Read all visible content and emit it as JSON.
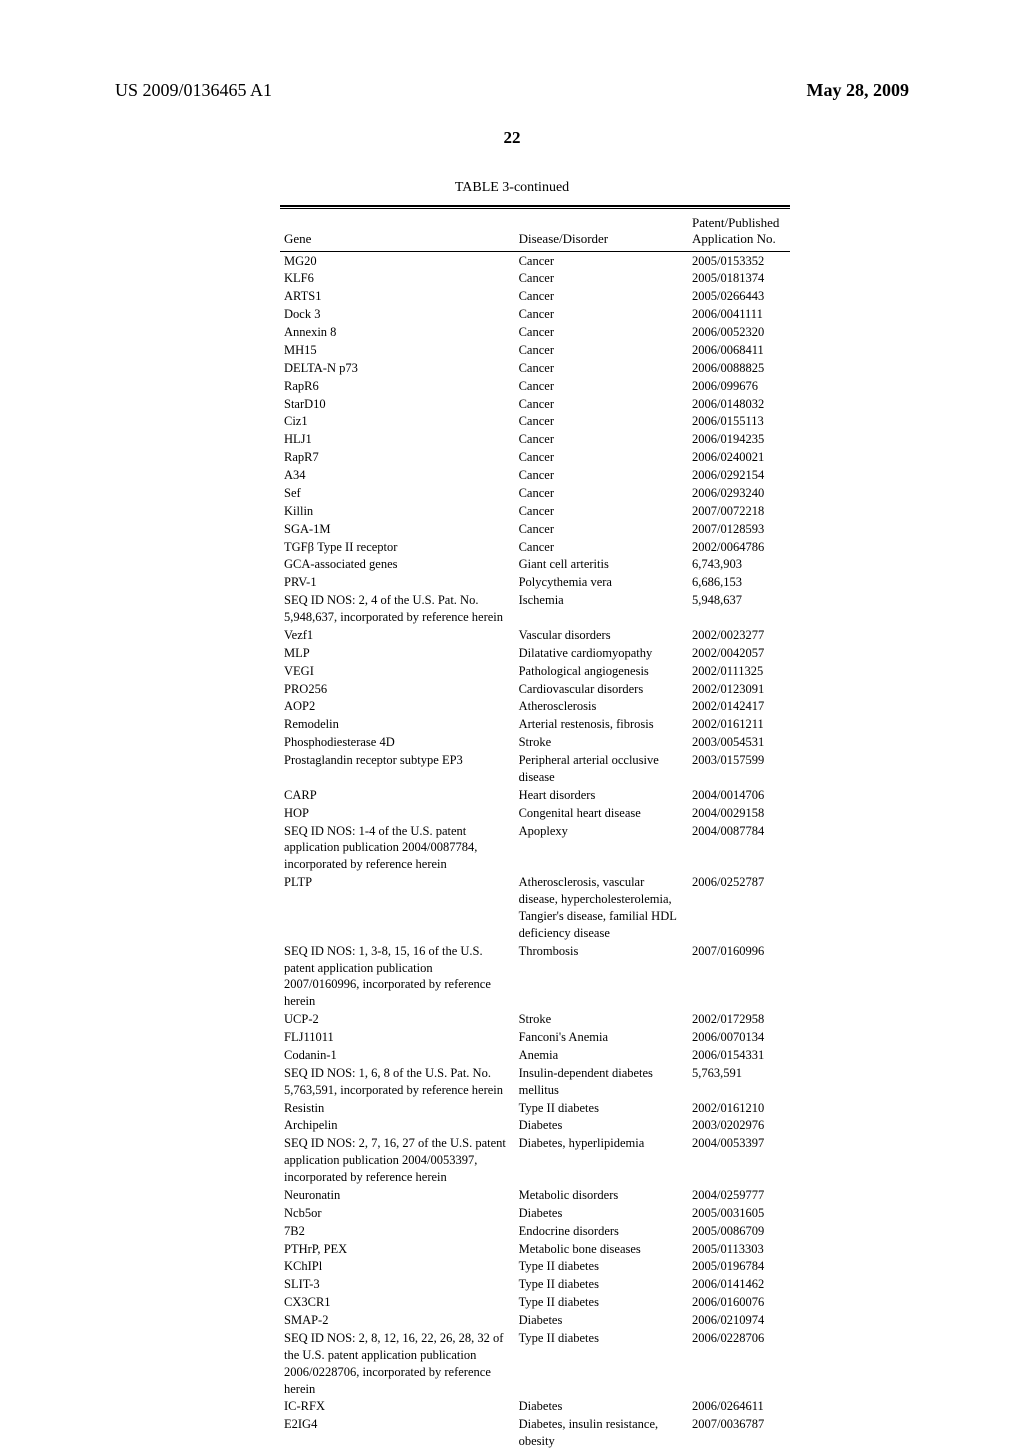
{
  "header": {
    "publication_number": "US 2009/0136465 A1",
    "publication_date": "May 28, 2009",
    "page_number": "22"
  },
  "table": {
    "caption": "TABLE 3-continued",
    "columns": {
      "gene": "Gene",
      "disease": "Disease/Disorder",
      "patent_line1": "Patent/Published",
      "patent_line2": "Application No."
    },
    "rows": [
      {
        "gene": "MG20",
        "disease": "Cancer",
        "patent": "2005/0153352"
      },
      {
        "gene": "KLF6",
        "disease": "Cancer",
        "patent": "2005/0181374"
      },
      {
        "gene": "ARTS1",
        "disease": "Cancer",
        "patent": "2005/0266443"
      },
      {
        "gene": "Dock 3",
        "disease": "Cancer",
        "patent": "2006/0041111"
      },
      {
        "gene": "Annexin 8",
        "disease": "Cancer",
        "patent": "2006/0052320"
      },
      {
        "gene": "MH15",
        "disease": "Cancer",
        "patent": "2006/0068411"
      },
      {
        "gene": "DELTA-N p73",
        "disease": "Cancer",
        "patent": "2006/0088825"
      },
      {
        "gene": "RapR6",
        "disease": "Cancer",
        "patent": "2006/099676"
      },
      {
        "gene": "StarD10",
        "disease": "Cancer",
        "patent": "2006/0148032"
      },
      {
        "gene": "Ciz1",
        "disease": "Cancer",
        "patent": "2006/0155113"
      },
      {
        "gene": "HLJ1",
        "disease": "Cancer",
        "patent": "2006/0194235"
      },
      {
        "gene": "RapR7",
        "disease": "Cancer",
        "patent": "2006/0240021"
      },
      {
        "gene": "A34",
        "disease": "Cancer",
        "patent": "2006/0292154"
      },
      {
        "gene": "Sef",
        "disease": "Cancer",
        "patent": "2006/0293240"
      },
      {
        "gene": "Killin",
        "disease": "Cancer",
        "patent": "2007/0072218"
      },
      {
        "gene": "SGA-1M",
        "disease": "Cancer",
        "patent": "2007/0128593"
      },
      {
        "gene": "TGFβ Type II receptor",
        "disease": "Cancer",
        "patent": "2002/0064786"
      },
      {
        "gene": "GCA-associated genes",
        "disease": "Giant cell arteritis",
        "patent": "6,743,903"
      },
      {
        "gene": "PRV-1",
        "disease": "Polycythemia vera",
        "patent": "6,686,153"
      },
      {
        "gene": "SEQ ID NOS: 2, 4 of the U.S. Pat. No. 5,948,637, incorporated by reference herein",
        "disease": "Ischemia",
        "patent": "5,948,637"
      },
      {
        "gene": "Vezf1",
        "disease": "Vascular disorders",
        "patent": "2002/0023277"
      },
      {
        "gene": "MLP",
        "disease": "Dilatative cardiomyopathy",
        "patent": "2002/0042057"
      },
      {
        "gene": "VEGI",
        "disease": "Pathological angiogenesis",
        "patent": "2002/0111325"
      },
      {
        "gene": "PRO256",
        "disease": "Cardiovascular disorders",
        "patent": "2002/0123091"
      },
      {
        "gene": "AOP2",
        "disease": "Atherosclerosis",
        "patent": "2002/0142417"
      },
      {
        "gene": "Remodelin",
        "disease": "Arterial restenosis, fibrosis",
        "patent": "2002/0161211"
      },
      {
        "gene": "Phosphodiesterase 4D",
        "disease": "Stroke",
        "patent": "2003/0054531"
      },
      {
        "gene": "Prostaglandin receptor subtype EP3",
        "disease": "Peripheral arterial occlusive disease",
        "patent": "2003/0157599"
      },
      {
        "gene": "CARP",
        "disease": "Heart disorders",
        "patent": "2004/0014706"
      },
      {
        "gene": "HOP",
        "disease": "Congenital heart disease",
        "patent": "2004/0029158"
      },
      {
        "gene": "SEQ ID NOS: 1-4 of the U.S. patent application publication 2004/0087784, incorporated by reference herein",
        "disease": "Apoplexy",
        "patent": "2004/0087784"
      },
      {
        "gene": "PLTP",
        "disease": "Atherosclerosis, vascular disease, hypercholesterolemia, Tangier's disease, familial HDL deficiency disease",
        "patent": "2006/0252787"
      },
      {
        "gene": "SEQ ID NOS: 1, 3-8, 15, 16 of the U.S. patent application publication 2007/0160996, incorporated by reference herein",
        "disease": "Thrombosis",
        "patent": "2007/0160996"
      },
      {
        "gene": "UCP-2",
        "disease": "Stroke",
        "patent": "2002/0172958"
      },
      {
        "gene": "FLJ11011",
        "disease": "Fanconi's Anemia",
        "patent": "2006/0070134"
      },
      {
        "gene": "Codanin-1",
        "disease": "Anemia",
        "patent": "2006/0154331"
      },
      {
        "gene": "SEQ ID NOS: 1, 6, 8 of the U.S. Pat. No. 5,763,591, incorporated by reference herein",
        "disease": "Insulin-dependent diabetes mellitus",
        "patent": "5,763,591"
      },
      {
        "gene": "Resistin",
        "disease": "Type II diabetes",
        "patent": "2002/0161210"
      },
      {
        "gene": "Archipelin",
        "disease": "Diabetes",
        "patent": "2003/0202976"
      },
      {
        "gene": "SEQ ID NOS: 2, 7, 16, 27 of the U.S. patent application publication 2004/0053397, incorporated by reference herein",
        "disease": "Diabetes, hyperlipidemia",
        "patent": "2004/0053397"
      },
      {
        "gene": "Neuronatin",
        "disease": "Metabolic disorders",
        "patent": "2004/0259777"
      },
      {
        "gene": "Ncb5or",
        "disease": "Diabetes",
        "patent": "2005/0031605"
      },
      {
        "gene": "7B2",
        "disease": "Endocrine disorders",
        "patent": "2005/0086709"
      },
      {
        "gene": "PTHrP, PEX",
        "disease": "Metabolic bone diseases",
        "patent": "2005/0113303"
      },
      {
        "gene": "KChIPl",
        "disease": "Type II diabetes",
        "patent": "2005/0196784"
      },
      {
        "gene": "SLIT-3",
        "disease": "Type II diabetes",
        "patent": "2006/0141462"
      },
      {
        "gene": "CX3CR1",
        "disease": "Type II diabetes",
        "patent": "2006/0160076"
      },
      {
        "gene": "SMAP-2",
        "disease": "Diabetes",
        "patent": "2006/0210974"
      },
      {
        "gene": "SEQ ID NOS: 2, 8, 12, 16, 22, 26, 28, 32 of the U.S. patent application publication 2006/0228706, incorporated by reference herein",
        "disease": "Type II diabetes",
        "patent": "2006/0228706"
      },
      {
        "gene": "IC-RFX",
        "disease": "Diabetes",
        "patent": "2006/0264611"
      },
      {
        "gene": "E2IG4",
        "disease": "Diabetes, insulin resistance, obesity",
        "patent": "2007/0036787"
      }
    ]
  }
}
